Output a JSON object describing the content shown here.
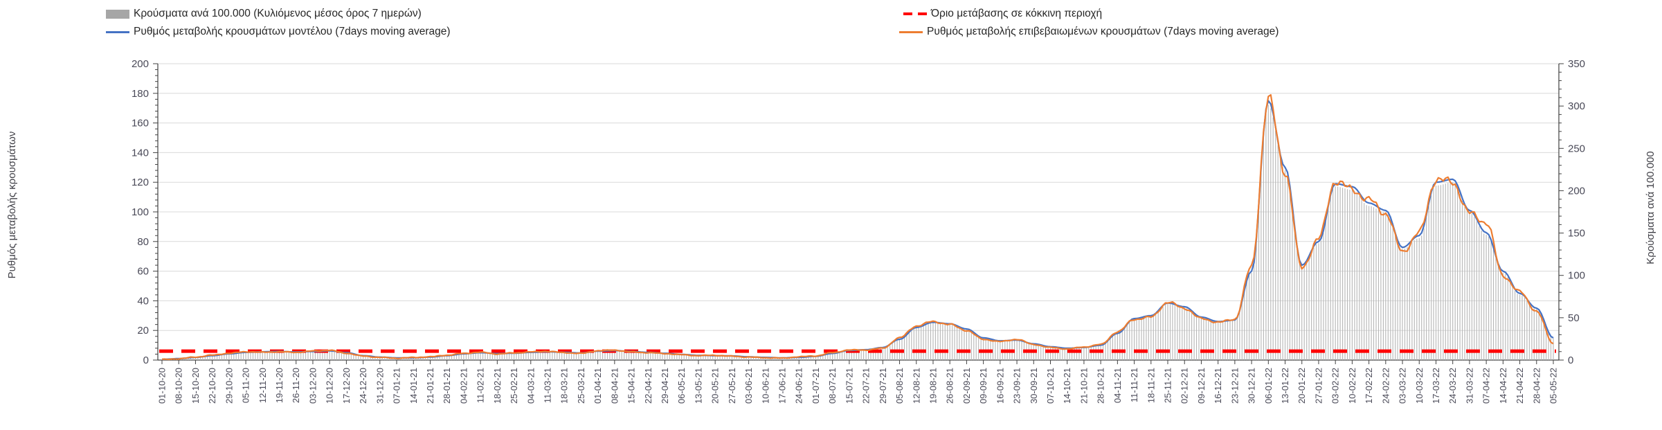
{
  "chart_data": {
    "type": "bar+line combo, dual axis",
    "title": "",
    "legend_position": "top",
    "grid": true,
    "x_tick_labels": [
      "01-10-20",
      "08-10-20",
      "15-10-20",
      "22-10-20",
      "29-10-20",
      "05-11-20",
      "12-11-20",
      "19-11-20",
      "26-11-20",
      "03-12-20",
      "10-12-20",
      "17-12-20",
      "24-12-20",
      "31-12-20",
      "07-01-21",
      "14-01-21",
      "21-01-21",
      "28-01-21",
      "04-02-21",
      "11-02-21",
      "18-02-21",
      "25-02-21",
      "04-03-21",
      "11-03-21",
      "18-03-21",
      "25-03-21",
      "01-04-21",
      "08-04-21",
      "15-04-21",
      "22-04-21",
      "29-04-21",
      "06-05-21",
      "13-05-21",
      "20-05-21",
      "27-05-21",
      "03-06-21",
      "10-06-21",
      "17-06-21",
      "24-06-21",
      "01-07-21",
      "08-07-21",
      "15-07-21",
      "22-07-21",
      "29-07-21",
      "05-08-21",
      "12-08-21",
      "19-08-21",
      "26-08-21",
      "02-09-21",
      "09-09-21",
      "16-09-21",
      "23-09-21",
      "30-09-21",
      "07-10-21",
      "14-10-21",
      "21-10-21",
      "28-10-21",
      "04-11-21",
      "11-11-21",
      "18-11-21",
      "25-11-21",
      "02-12-21",
      "09-12-21",
      "16-12-21",
      "23-12-21",
      "30-12-21",
      "06-01-22",
      "13-01-22",
      "20-01-22",
      "27-01-22",
      "03-02-22",
      "10-02-22",
      "17-02-22",
      "24-02-22",
      "03-03-22",
      "10-03-22",
      "17-03-22",
      "24-03-22",
      "31-03-22",
      "07-04-22",
      "14-04-22",
      "21-04-22",
      "28-04-22",
      "05-05-22"
    ],
    "left_axis": {
      "label": "Ρυθμός μεταβολής κρουσμάτων",
      "min": 0,
      "max": 200,
      "ticks": [
        0,
        20,
        40,
        60,
        80,
        100,
        120,
        140,
        160,
        180,
        200
      ],
      "minor_step": 4
    },
    "right_axis": {
      "label": "Κρούσματα ανά 100.000",
      "min": 0,
      "max": 350,
      "ticks": [
        0,
        50,
        100,
        150,
        200,
        250,
        300,
        350
      ],
      "minor_step": 10
    },
    "series": [
      {
        "name": "Κρούσματα ανά 100.000 (Κυλιόμενος μέσος όρος 7 ημερών)",
        "type": "bar",
        "axis": "right",
        "color": "#b5b5b5",
        "values": [
          0.9,
          1.7,
          3.1,
          5.2,
          7.2,
          8.9,
          9.6,
          10,
          9.5,
          10,
          10.7,
          8.6,
          5.2,
          3.4,
          2.6,
          2.6,
          3.4,
          5.2,
          7.2,
          8.6,
          7.6,
          7.9,
          8.9,
          9.6,
          8.9,
          8.3,
          10.3,
          11,
          10,
          8.9,
          7.9,
          6.5,
          5.5,
          5.2,
          4.8,
          3.8,
          3.1,
          2.6,
          3.1,
          4.3,
          7.7,
          11.2,
          12,
          14.6,
          24,
          37.8,
          43.9,
          42.1,
          36.1,
          25.8,
          22.4,
          23.2,
          18.9,
          15.5,
          13.8,
          14.6,
          17.2,
          31,
          48.2,
          51.6,
          66.2,
          61.9,
          49.9,
          44.7,
          46.4,
          103,
          301,
          224,
          110,
          138,
          205,
          201,
          182,
          174,
          131,
          144,
          206,
          210,
          174,
          148,
          103,
          77,
          60,
          26
        ]
      },
      {
        "name": "Ρυθμός μεταβολής κρουσμάτων μοντέλου (7days moving average)",
        "type": "line",
        "axis": "left",
        "color": "#4472c4",
        "values": [
          0.5,
          1.0,
          1.8,
          3.0,
          4.2,
          5.2,
          5.6,
          5.8,
          5.5,
          5.8,
          6.2,
          5.0,
          3.0,
          2.0,
          1.5,
          1.5,
          2.0,
          3.0,
          4.2,
          5.0,
          4.4,
          4.6,
          5.2,
          5.6,
          5.2,
          4.8,
          6.0,
          6.4,
          5.8,
          5.2,
          4.6,
          3.8,
          3.2,
          3.0,
          2.8,
          2.2,
          1.8,
          1.5,
          1.8,
          2.5,
          4.5,
          6.5,
          7.0,
          8.5,
          14,
          22,
          25.5,
          24.5,
          21,
          15,
          13,
          13.5,
          11,
          9,
          8,
          8.5,
          10,
          18,
          28,
          30,
          38.5,
          36,
          29,
          26,
          27,
          60,
          175,
          130,
          64,
          80,
          119,
          117,
          106,
          101,
          76,
          84,
          120,
          122,
          101,
          86,
          60,
          45,
          35,
          15
        ]
      },
      {
        "name": "Ρυθμός μεταβολής επιβεβαιωμένων κρουσμάτων (7days moving average)",
        "type": "line",
        "axis": "left",
        "color": "#ed7d31",
        "values": [
          0.4,
          0.9,
          2.0,
          3.3,
          4.6,
          5.6,
          5.3,
          5.6,
          5.2,
          6.1,
          6.6,
          4.6,
          2.7,
          1.8,
          1.3,
          1.7,
          2.2,
          3.3,
          4.5,
          5.3,
          4.1,
          4.8,
          5.5,
          5.9,
          5.0,
          4.5,
          6.3,
          6.7,
          5.5,
          5.0,
          4.4,
          3.6,
          3.0,
          3.2,
          2.6,
          2.0,
          1.6,
          1.3,
          2.2,
          2.8,
          5.0,
          6.8,
          6.8,
          8.0,
          15,
          23,
          26,
          24,
          20,
          14,
          12.5,
          14,
          10.5,
          8.5,
          7.5,
          8.8,
          10.5,
          19,
          27.5,
          29,
          39,
          35,
          28,
          25.5,
          27.5,
          63,
          177,
          127,
          62,
          82,
          121,
          115,
          108,
          99,
          73,
          86,
          122,
          120,
          99,
          93,
          57,
          46,
          33,
          11
        ]
      },
      {
        "name": "Όριο μετάβασης σε κόκκινη περιοχή",
        "type": "threshold",
        "axis": "left",
        "color": "#ff0000",
        "value": 6
      }
    ]
  },
  "legend": {
    "items": [
      {
        "label": "Κρούσματα ανά 100.000 (Κυλιόμενος μέσος όρος 7 ημερών)",
        "swatch": "bar",
        "color": "#a6a6a6"
      },
      {
        "label": "Ρυθμός μεταβολής κρουσμάτων μοντέλου (7days moving average)",
        "swatch": "line",
        "color": "#4472c4"
      },
      {
        "label": "Όριο μετάβασης σε κόκκινη περιοχή",
        "swatch": "dash",
        "color": "#ff0000"
      },
      {
        "label": "Ρυθμός μεταβολής επιβεβαιωμένων κρουσμάτων (7days moving average)",
        "swatch": "line",
        "color": "#ed7d31"
      }
    ]
  }
}
